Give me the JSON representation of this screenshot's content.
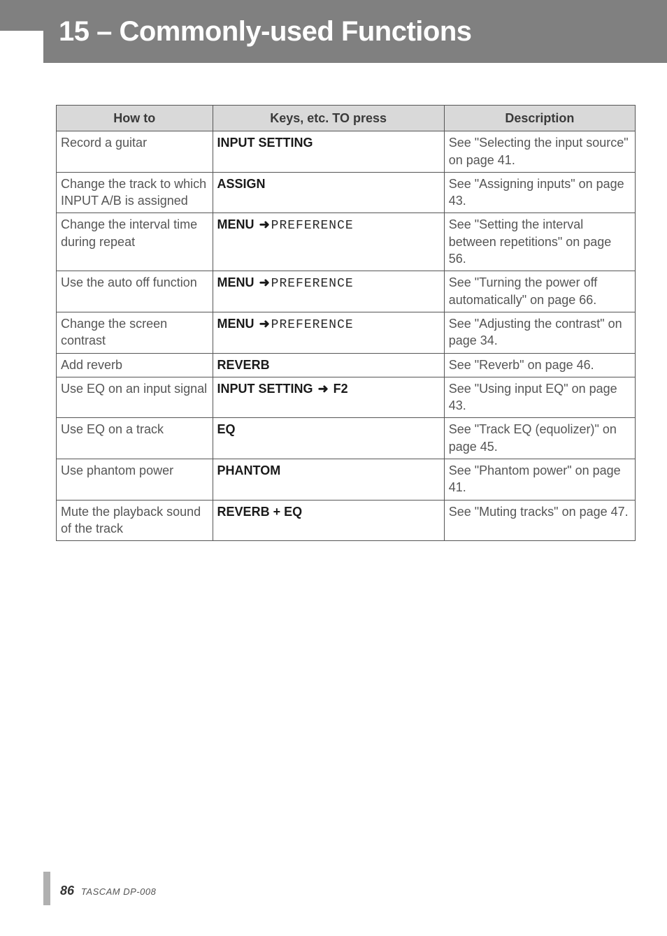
{
  "page": {
    "chapter_title": "15 – Commonly-used Functions",
    "page_number": "86",
    "product": "TASCAM  DP-008"
  },
  "colors": {
    "header_bg": "#808080",
    "header_text": "#ffffff",
    "th_bg": "#d9d9d9",
    "border": "#555555",
    "body_text": "#555555",
    "key_bold": "#1a1a1a",
    "side_tab": "#b0b0b0"
  },
  "table": {
    "headers": {
      "how": "How to",
      "keys": "Keys, etc. TO press",
      "desc": "Description"
    },
    "col_widths_pct": [
      27,
      40,
      33
    ],
    "rows": [
      {
        "how": "Record a guitar",
        "keys": [
          {
            "t": "kb",
            "v": "INPUT SETTING"
          }
        ],
        "desc": "See \"Selecting the input source\" on page 41."
      },
      {
        "how": "Change the track to which INPUT A/B is assigned",
        "keys": [
          {
            "t": "kb",
            "v": "ASSIGN"
          }
        ],
        "desc": "See \"Assigning inputs\" on page 43."
      },
      {
        "how": "Change the interval time during repeat",
        "keys": [
          {
            "t": "kb",
            "v": "MENU"
          },
          {
            "t": "arrow",
            "v": "➜"
          },
          {
            "t": "mono",
            "v": "PREFERENCE"
          }
        ],
        "desc": "See \"Setting the interval between repetitions\" on page 56."
      },
      {
        "how": "Use the auto off function",
        "keys": [
          {
            "t": "kb",
            "v": "MENU"
          },
          {
            "t": "arrow",
            "v": "➜"
          },
          {
            "t": "mono",
            "v": "PREFERENCE"
          }
        ],
        "desc": "See \"Turning the power off automatically\" on page 66."
      },
      {
        "how": "Change the screen contrast",
        "keys": [
          {
            "t": "kb",
            "v": "MENU"
          },
          {
            "t": "arrow",
            "v": "➜"
          },
          {
            "t": "mono",
            "v": "PREFERENCE"
          }
        ],
        "desc": "See \"Adjusting the contrast\" on page 34."
      },
      {
        "how": "Add reverb",
        "keys": [
          {
            "t": "kb",
            "v": "REVERB"
          }
        ],
        "desc": "See \"Reverb\" on page 46."
      },
      {
        "how": "Use EQ on an input signal",
        "keys": [
          {
            "t": "kb",
            "v": "INPUT SETTING "
          },
          {
            "t": "arrow",
            "v": "➜"
          },
          {
            "t": "kb",
            "v": " F2"
          }
        ],
        "desc": "See \"Using input EQ\" on page 43."
      },
      {
        "how": "Use EQ on a track",
        "keys": [
          {
            "t": "kb",
            "v": "EQ"
          }
        ],
        "desc": "See \"Track EQ (equolizer)\" on page 45."
      },
      {
        "how": "Use phantom power",
        "keys": [
          {
            "t": "kb",
            "v": "PHANTOM"
          }
        ],
        "desc": "See \"Phantom power\" on page 41."
      },
      {
        "how": "Mute the playback sound of the track",
        "keys": [
          {
            "t": "kb",
            "v": "REVERB + EQ"
          }
        ],
        "desc": "See \"Muting tracks\" on page 47."
      }
    ]
  }
}
